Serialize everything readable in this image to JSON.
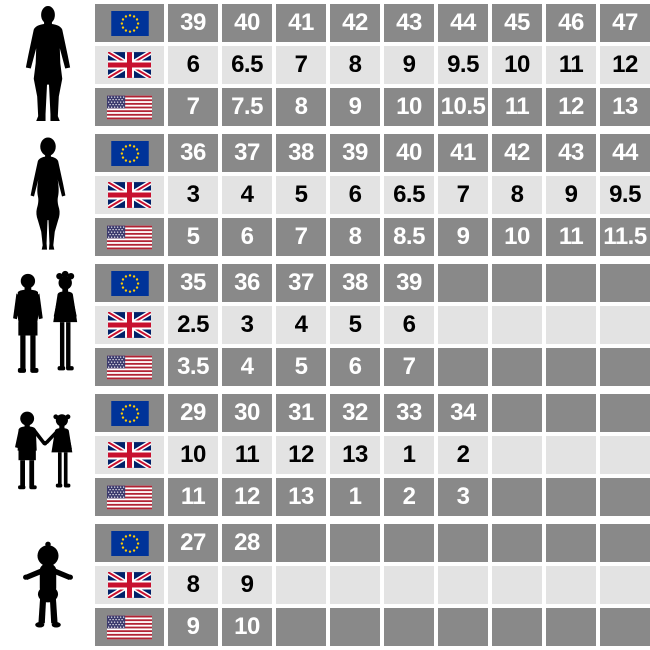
{
  "colors": {
    "cell_dark": "#898989",
    "cell_light": "#e3e3e3",
    "text_on_dark": "#ffffff",
    "text_on_light": "#000000",
    "gap_white": "#ffffff",
    "silhouette_black": "#000000",
    "eu_flag_blue": "#003399",
    "eu_flag_star_yellow": "#ffcc00",
    "uk_flag_blue": "#012169",
    "uk_flag_red": "#c8102e",
    "us_flag_blue": "#3c3b6e",
    "us_flag_red": "#b22234"
  },
  "icons": {
    "flags": [
      {
        "code": "eu",
        "icon": "eu-flag-icon"
      },
      {
        "code": "uk",
        "icon": "uk-flag-icon"
      },
      {
        "code": "us",
        "icon": "us-flag-icon"
      }
    ],
    "figures": [
      "man-silhouette-icon",
      "woman-silhouette-icon",
      "children-silhouette-icon",
      "young-children-silhouette-icon",
      "toddler-silhouette-icon"
    ]
  },
  "chart_data": {
    "type": "table",
    "columns": 9,
    "row_order": [
      "eu",
      "uk",
      "us"
    ],
    "row_shading": {
      "eu": "dark",
      "uk": "light",
      "us": "dark"
    },
    "groups": [
      {
        "figure": "man",
        "rows": {
          "eu": [
            "39",
            "40",
            "41",
            "42",
            "43",
            "44",
            "45",
            "46",
            "47"
          ],
          "uk": [
            "6",
            "6.5",
            "7",
            "8",
            "9",
            "9.5",
            "10",
            "11",
            "12"
          ],
          "us": [
            "7",
            "7.5",
            "8",
            "9",
            "10",
            "10.5",
            "11",
            "12",
            "13"
          ]
        }
      },
      {
        "figure": "woman",
        "rows": {
          "eu": [
            "36",
            "37",
            "38",
            "39",
            "40",
            "41",
            "42",
            "43",
            "44"
          ],
          "uk": [
            "3",
            "4",
            "5",
            "6",
            "6.5",
            "7",
            "8",
            "9",
            "9.5"
          ],
          "us": [
            "5",
            "6",
            "7",
            "8",
            "8.5",
            "9",
            "10",
            "11",
            "11.5"
          ]
        }
      },
      {
        "figure": "children",
        "rows": {
          "eu": [
            "35",
            "36",
            "37",
            "38",
            "39",
            "",
            "",
            "",
            ""
          ],
          "uk": [
            "2.5",
            "3",
            "4",
            "5",
            "6",
            "",
            "",
            "",
            ""
          ],
          "us": [
            "3.5",
            "4",
            "5",
            "6",
            "7",
            "",
            "",
            "",
            ""
          ]
        }
      },
      {
        "figure": "young-children",
        "rows": {
          "eu": [
            "29",
            "30",
            "31",
            "32",
            "33",
            "34",
            "",
            "",
            ""
          ],
          "uk": [
            "10",
            "11",
            "12",
            "13",
            "1",
            "2",
            "",
            "",
            ""
          ],
          "us": [
            "11",
            "12",
            "13",
            "1",
            "2",
            "3",
            "",
            "",
            ""
          ]
        }
      },
      {
        "figure": "toddler",
        "rows": {
          "eu": [
            "27",
            "28",
            "",
            "",
            "",
            "",
            "",
            "",
            ""
          ],
          "uk": [
            "8",
            "9",
            "",
            "",
            "",
            "",
            "",
            "",
            ""
          ],
          "us": [
            "9",
            "10",
            "",
            "",
            "",
            "",
            "",
            "",
            ""
          ]
        }
      }
    ]
  }
}
